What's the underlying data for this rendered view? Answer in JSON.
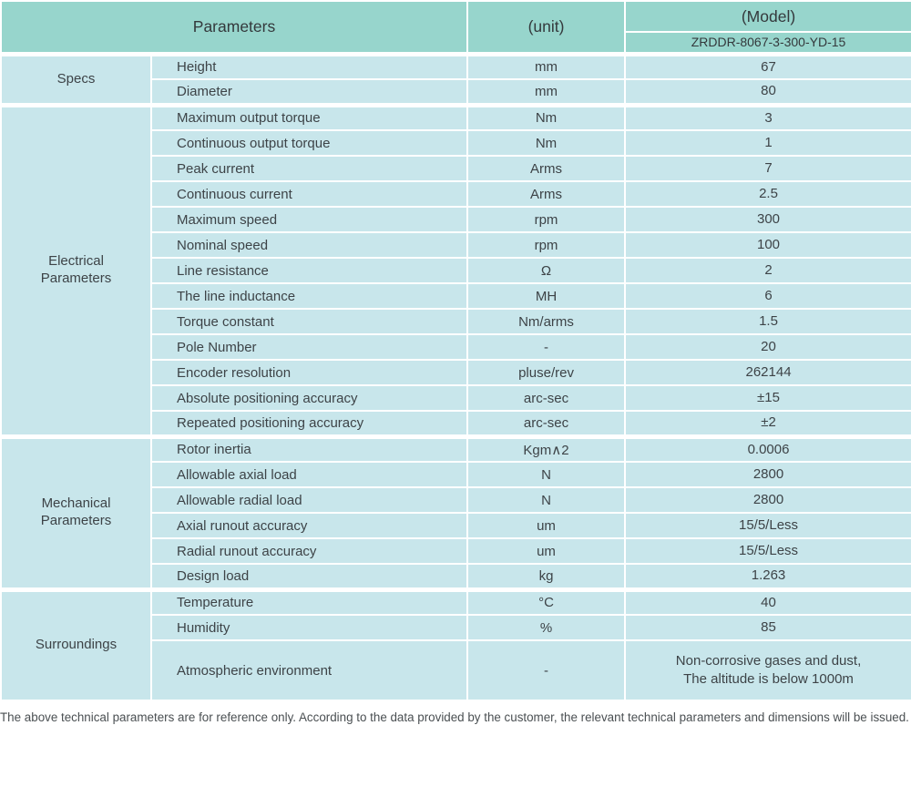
{
  "table": {
    "header": {
      "parameters_label": "Parameters",
      "unit_label": "(unit)",
      "model_label": "(Model)",
      "model_value": "ZRDDR-8067-3-300-YD-15"
    },
    "sections": [
      {
        "name": "Specs",
        "rows": [
          {
            "param": "Height",
            "unit": "mm",
            "value": "67"
          },
          {
            "param": "Diameter",
            "unit": "mm",
            "value": "80"
          }
        ]
      },
      {
        "name": "Electrical\nParameters",
        "rows": [
          {
            "param": "Maximum output torque",
            "unit": "Nm",
            "value": "3"
          },
          {
            "param": "Continuous output torque",
            "unit": "Nm",
            "value": "1"
          },
          {
            "param": "Peak current",
            "unit": "Arms",
            "value": "7"
          },
          {
            "param": "Continuous current",
            "unit": "Arms",
            "value": "2.5"
          },
          {
            "param": "Maximum speed",
            "unit": "rpm",
            "value": "300"
          },
          {
            "param": "Nominal speed",
            "unit": "rpm",
            "value": "100"
          },
          {
            "param": "Line resistance",
            "unit": "Ω",
            "value": "2"
          },
          {
            "param": "The line inductance",
            "unit": "MH",
            "value": "6"
          },
          {
            "param": "Torque constant",
            "unit": "Nm/arms",
            "value": "1.5"
          },
          {
            "param": "Pole Number",
            "unit": "-",
            "value": "20"
          },
          {
            "param": "Encoder resolution",
            "unit": "pluse/rev",
            "value": "262144"
          },
          {
            "param": "Absolute positioning accuracy",
            "unit": "arc-sec",
            "value": "±15"
          },
          {
            "param": "Repeated positioning accuracy",
            "unit": "arc-sec",
            "value": "±2"
          }
        ]
      },
      {
        "name": "Mechanical\nParameters",
        "rows": [
          {
            "param": "Rotor inertia",
            "unit": "Kgm∧2",
            "value": "0.0006"
          },
          {
            "param": "Allowable axial load",
            "unit": "N",
            "value": "2800"
          },
          {
            "param": "Allowable radial load",
            "unit": "N",
            "value": "2800"
          },
          {
            "param": "Axial runout accuracy",
            "unit": "um",
            "value": "15/5/Less"
          },
          {
            "param": "Radial runout accuracy",
            "unit": "um",
            "value": "15/5/Less"
          },
          {
            "param": "Design load",
            "unit": "kg",
            "value": "1.263"
          }
        ]
      },
      {
        "name": "Surroundings",
        "rows": [
          {
            "param": "Temperature",
            "unit": "°C",
            "value": "40"
          },
          {
            "param": "Humidity",
            "unit": "%",
            "value": "85"
          },
          {
            "param": "Atmospheric environment",
            "unit": "-",
            "value": "Non-corrosive gases and dust,\nThe altitude is below 1000m",
            "tall": true
          }
        ]
      }
    ]
  },
  "footer": {
    "note": "The above technical parameters are for reference only. According to the data provided by the customer, the relevant technical parameters and dimensions will be issued."
  },
  "colors": {
    "header_bg": "#97d5cc",
    "cell_bg": "#c8e6eb",
    "text": "#3d4347",
    "note_text": "#4a4f52"
  }
}
